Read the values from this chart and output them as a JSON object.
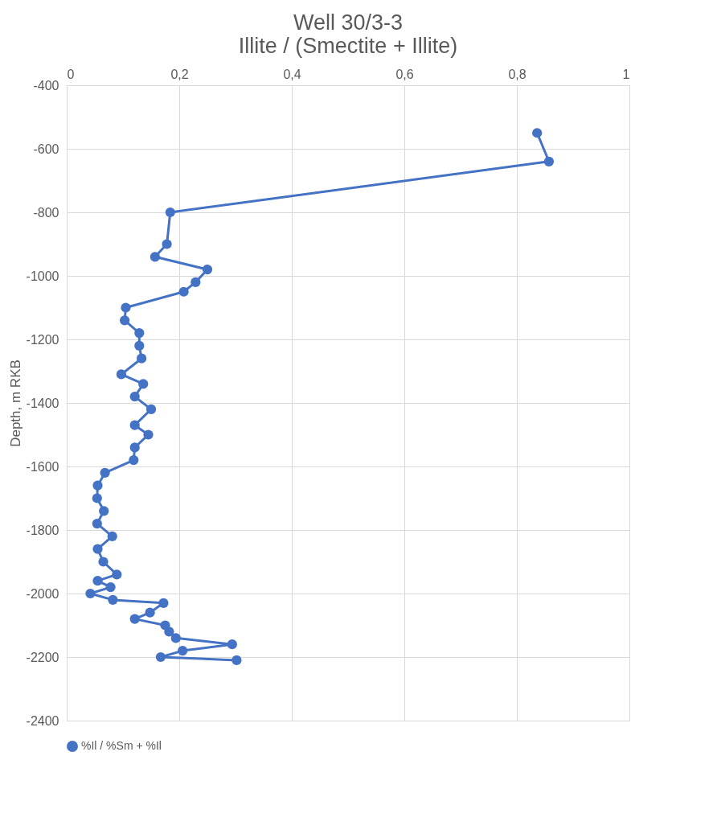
{
  "chart_data": {
    "type": "line",
    "title": [
      "Well 30/3-3",
      "Illite / (Smectite + Illite)"
    ],
    "ylabel": "Depth, m RKB",
    "xlim": [
      0,
      1
    ],
    "xticks": [
      0,
      {
        "value": 0.2,
        "label": "0,2"
      },
      {
        "value": 0.4,
        "label": "0,4"
      },
      {
        "value": 0.6,
        "label": "0,6"
      },
      {
        "value": 0.8,
        "label": "0,8"
      },
      1
    ],
    "ylim": [
      -2400,
      -400
    ],
    "yticks": [
      -2400,
      -2200,
      -2000,
      -1800,
      -1600,
      -1400,
      -1200,
      -1000,
      -800,
      -600,
      -400
    ],
    "grid": true,
    "legend": "bottom",
    "marker": "circle",
    "line_style": "solid",
    "series": [
      {
        "name": "%Il / %Sm + %Il",
        "color": "#4472c4",
        "x": [
          0.836,
          0.857,
          0.184,
          0.178,
          0.157,
          0.25,
          0.229,
          0.208,
          0.105,
          0.103,
          0.129,
          0.129,
          0.133,
          0.097,
          0.136,
          0.121,
          0.15,
          0.121,
          0.145,
          0.121,
          0.119,
          0.068,
          0.055,
          0.054,
          0.066,
          0.054,
          0.081,
          0.055,
          0.065,
          0.089,
          0.055,
          0.078,
          0.042,
          0.082,
          0.172,
          0.148,
          0.121,
          0.175,
          0.182,
          0.194,
          0.294,
          0.206,
          0.167,
          0.302
        ],
        "values": [
          -550,
          -640,
          -800,
          -900,
          -940,
          -980,
          -1020,
          -1050,
          -1100,
          -1140,
          -1180,
          -1220,
          -1260,
          -1310,
          -1340,
          -1380,
          -1420,
          -1470,
          -1500,
          -1540,
          -1580,
          -1620,
          -1660,
          -1700,
          -1740,
          -1780,
          -1820,
          -1860,
          -1900,
          -1940,
          -1960,
          -1980,
          -2000,
          -2020,
          -2030,
          -2060,
          -2080,
          -2100,
          -2120,
          -2140,
          -2160,
          -2180,
          -2200,
          -2210
        ]
      }
    ]
  }
}
